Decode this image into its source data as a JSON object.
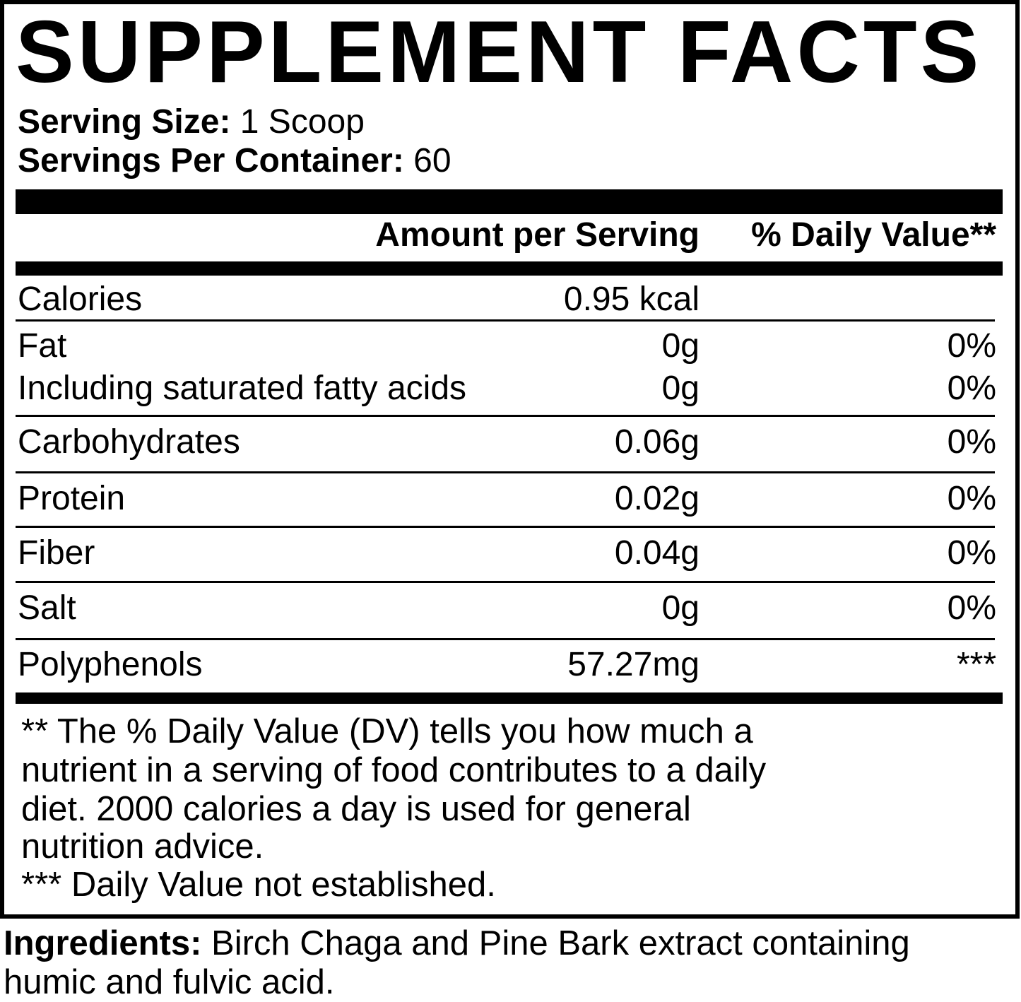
{
  "title": "SUPPLEMENT FACTS",
  "serving_size": {
    "label": "Serving Size:",
    "value": " 1 Scoop"
  },
  "servings_per_container": {
    "label": "Servings Per Container:",
    "value": " 60"
  },
  "header": {
    "amount": "Amount per Serving",
    "daily_value": "% Daily Value**"
  },
  "rows": [
    {
      "name": "Calories",
      "amount": "0.95 kcal",
      "dv": ""
    },
    {
      "name": "Fat",
      "amount": "0g",
      "dv": "0%"
    },
    {
      "name": "Including saturated fatty acids",
      "amount": "0g",
      "dv": "0%"
    },
    {
      "name": "Carbohydrates",
      "amount": "0.06g",
      "dv": "0%"
    },
    {
      "name": "Protein",
      "amount": "0.02g",
      "dv": "0%"
    },
    {
      "name": "Fiber",
      "amount": "0.04g",
      "dv": "0%"
    },
    {
      "name": "Salt",
      "amount": "0g",
      "dv": "0%"
    },
    {
      "name": "Polyphenols",
      "amount": "57.27mg",
      "dv": "***"
    }
  ],
  "footnotes": [
    "** The % Daily Value (DV) tells you how much a",
    "nutrient in a serving of food contributes to a daily",
    "diet. 2000 calories a day is used for general",
    "nutrition advice.",
    "*** Daily Value not established."
  ],
  "ingredients": {
    "label": "Ingredients:",
    "line1": " Birch Chaga and Pine Bark extract containing",
    "line2": "humic and fulvic acid."
  }
}
